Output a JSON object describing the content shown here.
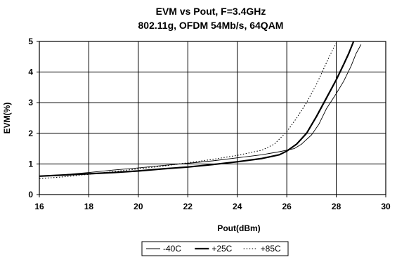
{
  "chart_data": {
    "type": "line",
    "title": "EVM vs Pout, F=3.4GHz",
    "subtitle": "802.11g, OFDM 54Mb/s, 64QAM",
    "xlabel": "Pout(dBm)",
    "ylabel": "EVM(%)",
    "xlim": [
      16,
      30
    ],
    "ylim": [
      0,
      5
    ],
    "xticks": [
      16,
      18,
      20,
      22,
      24,
      26,
      28,
      30
    ],
    "yticks": [
      0,
      1,
      2,
      3,
      4,
      5
    ],
    "grid": true,
    "legend_position": "bottom",
    "series": [
      {
        "name": "-40C",
        "style": "thin",
        "color": "#000000",
        "x": [
          16,
          17,
          18,
          19,
          20,
          21,
          22,
          23,
          24,
          25,
          25.7,
          26,
          26.3,
          26.6,
          27,
          27.3,
          27.6,
          28,
          28.3,
          28.6,
          28.8,
          29.0
        ],
        "y": [
          0.6,
          0.65,
          0.72,
          0.8,
          0.87,
          0.95,
          1.02,
          1.1,
          1.2,
          1.3,
          1.4,
          1.45,
          1.5,
          1.65,
          1.95,
          2.3,
          2.8,
          3.3,
          3.7,
          4.2,
          4.6,
          4.9
        ]
      },
      {
        "name": "+25C",
        "style": "thick",
        "color": "#000000",
        "x": [
          16,
          17,
          18,
          19,
          20,
          21,
          22,
          23,
          24,
          25,
          25.7,
          26,
          26.4,
          26.8,
          27.2,
          27.6,
          28,
          28.3,
          28.5,
          28.7
        ],
        "y": [
          0.6,
          0.64,
          0.68,
          0.72,
          0.77,
          0.84,
          0.9,
          0.98,
          1.07,
          1.18,
          1.3,
          1.42,
          1.65,
          2.0,
          2.55,
          3.15,
          3.75,
          4.25,
          4.6,
          5.0
        ]
      },
      {
        "name": "+85C",
        "style": "dotted",
        "color": "#000000",
        "x": [
          16,
          17,
          18,
          19,
          20,
          21,
          22,
          23,
          24,
          25,
          25.5,
          26,
          26.4,
          26.8,
          27.2,
          27.6,
          27.9,
          28.0
        ],
        "y": [
          0.52,
          0.58,
          0.66,
          0.75,
          0.84,
          0.93,
          1.04,
          1.15,
          1.28,
          1.45,
          1.65,
          2.05,
          2.5,
          3.0,
          3.6,
          4.3,
          4.8,
          4.95
        ]
      }
    ]
  }
}
